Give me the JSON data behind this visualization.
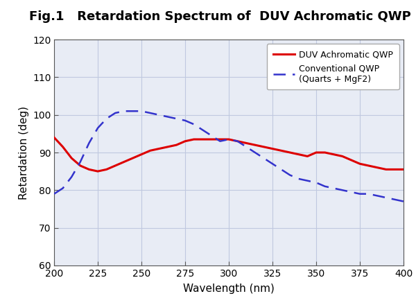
{
  "title": "Fig.1   Retardation Spectrum of  DUV Achromatic QWP",
  "xlabel": "Wavelength (nm)",
  "ylabel": "Retardation (deg)",
  "xlim": [
    200,
    400
  ],
  "ylim": [
    60,
    120
  ],
  "xticks": [
    200,
    225,
    250,
    275,
    300,
    325,
    350,
    375,
    400
  ],
  "yticks": [
    60,
    70,
    80,
    90,
    100,
    110,
    120
  ],
  "grid_color": "#c0c8e0",
  "background_color": "#e8ecf5",
  "legend_entries": [
    "DUV Achromatic QWP",
    "Conventional QWP\n(Quarts + MgF2)"
  ],
  "red_line_color": "#dd0000",
  "blue_line_color": "#3333cc",
  "red_x": [
    200,
    205,
    210,
    215,
    220,
    225,
    230,
    235,
    240,
    245,
    250,
    255,
    260,
    265,
    270,
    275,
    280,
    285,
    290,
    295,
    300,
    305,
    310,
    315,
    320,
    325,
    330,
    335,
    340,
    345,
    350,
    355,
    360,
    365,
    370,
    375,
    380,
    385,
    390,
    395,
    400
  ],
  "red_y": [
    94.0,
    91.5,
    88.5,
    86.5,
    85.5,
    85.0,
    85.5,
    86.5,
    87.5,
    88.5,
    89.5,
    90.5,
    91.0,
    91.5,
    92.0,
    93.0,
    93.5,
    93.5,
    93.5,
    93.5,
    93.5,
    93.0,
    92.5,
    92.0,
    91.5,
    91.0,
    90.5,
    90.0,
    89.5,
    89.0,
    90.0,
    90.0,
    89.5,
    89.0,
    88.0,
    87.0,
    86.5,
    86.0,
    85.5,
    85.5,
    85.5
  ],
  "blue_x": [
    200,
    205,
    210,
    215,
    220,
    225,
    230,
    235,
    240,
    245,
    250,
    255,
    260,
    265,
    270,
    275,
    280,
    285,
    290,
    295,
    300,
    305,
    310,
    315,
    320,
    325,
    330,
    335,
    340,
    345,
    350,
    355,
    360,
    365,
    370,
    375,
    380,
    385,
    390,
    395,
    400
  ],
  "blue_y": [
    79.0,
    80.5,
    83.5,
    87.5,
    92.5,
    96.5,
    99.0,
    100.5,
    101.0,
    101.0,
    101.0,
    100.5,
    100.0,
    99.5,
    99.0,
    98.5,
    97.5,
    96.0,
    94.5,
    93.0,
    93.5,
    93.0,
    91.5,
    90.0,
    88.5,
    87.0,
    85.5,
    84.0,
    83.0,
    82.5,
    82.0,
    81.0,
    80.5,
    80.0,
    79.5,
    79.0,
    79.0,
    78.5,
    78.0,
    77.5,
    77.0
  ],
  "title_fontsize": 13,
  "axis_label_fontsize": 11,
  "tick_fontsize": 10,
  "legend_fontsize": 9
}
